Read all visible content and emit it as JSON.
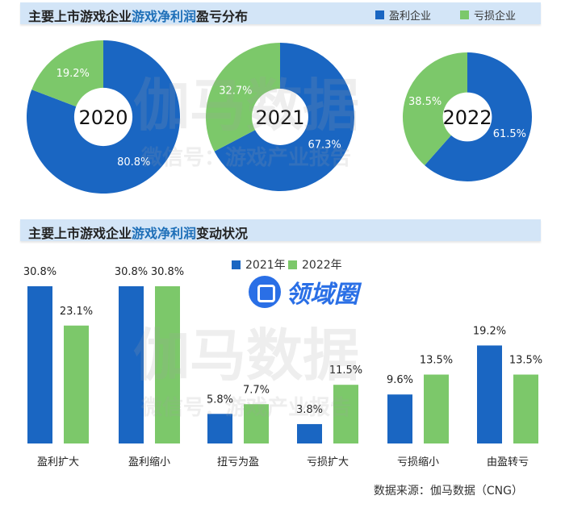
{
  "section1": {
    "title_a": "主要上市游戏企业",
    "title_hl": "游戏净利润",
    "title_b": "盈亏分布",
    "legend": [
      {
        "label": "盈利企业",
        "color": "#1a66c2"
      },
      {
        "label": "亏损企业",
        "color": "#7cc86a"
      }
    ]
  },
  "section2": {
    "title_a": "主要上市游戏企业",
    "title_hl": "游戏净利润",
    "title_b": "变动状况"
  },
  "watermarks": {
    "brand": "伽马数据",
    "sub": "微信号：游戏产业报告",
    "logo": "领域圈"
  },
  "source": "数据来源：伽马数据（CNG）",
  "chart_data": [
    {
      "type": "pie",
      "title": "主要上市游戏企业游戏净利润盈亏分布",
      "series_labels": [
        "盈利企业",
        "亏损企业"
      ],
      "pies": [
        {
          "year": "2020",
          "values": [
            80.8,
            19.2
          ],
          "labels": [
            "80.8%",
            "19.2%"
          ]
        },
        {
          "year": "2021",
          "values": [
            67.3,
            32.7
          ],
          "labels": [
            "67.3%",
            "32.7%"
          ]
        },
        {
          "year": "2022",
          "values": [
            61.5,
            38.5
          ],
          "labels": [
            "61.5%",
            "38.5%"
          ]
        }
      ]
    },
    {
      "type": "bar",
      "title": "主要上市游戏企业游戏净利润变动状况",
      "categories": [
        "盈利扩大",
        "盈利缩小",
        "扭亏为盈",
        "亏损扩大",
        "亏损缩小",
        "由盈转亏"
      ],
      "series": [
        {
          "name": "2021年",
          "color": "#1a66c2",
          "values": [
            30.8,
            30.8,
            5.8,
            3.8,
            9.6,
            19.2
          ],
          "labels": [
            "30.8%",
            "30.8%",
            "5.8%",
            "3.8%",
            "9.6%",
            "19.2%"
          ]
        },
        {
          "name": "2022年",
          "color": "#7cc86a",
          "values": [
            23.1,
            30.8,
            7.7,
            11.5,
            13.5,
            13.5
          ],
          "labels": [
            "23.1%",
            "30.8%",
            "7.7%",
            "11.5%",
            "13.5%",
            "13.5%"
          ]
        }
      ],
      "ylim": [
        0,
        32
      ],
      "legend": "top-center"
    }
  ]
}
